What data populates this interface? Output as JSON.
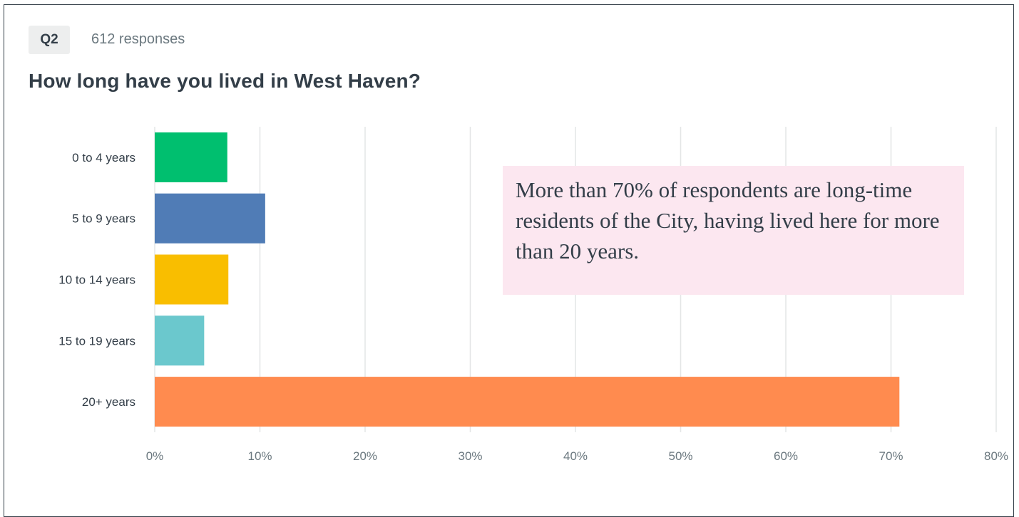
{
  "question": {
    "number": "Q2",
    "responses": "612 responses",
    "title": "How long have you lived in West Haven?"
  },
  "chart_data": {
    "type": "bar",
    "orientation": "horizontal",
    "categories": [
      "0 to 4 years",
      "5 to 9 years",
      "10 to 14 years",
      "15 to 19 years",
      "20+ years"
    ],
    "values": [
      6.9,
      10.5,
      7.0,
      4.7,
      70.8
    ],
    "colors": [
      "#00bf6f",
      "#507cb6",
      "#f9be00",
      "#6bc8cd",
      "#ff8b4f"
    ],
    "x_ticks": [
      "0%",
      "10%",
      "20%",
      "30%",
      "40%",
      "50%",
      "60%",
      "70%",
      "80%"
    ],
    "xlim": [
      0,
      80
    ],
    "unit": "%",
    "grid": true,
    "legend": "none",
    "annotation": "More than 70% of respondents are long-time residents of the City, having lived here for more than 20 years."
  }
}
